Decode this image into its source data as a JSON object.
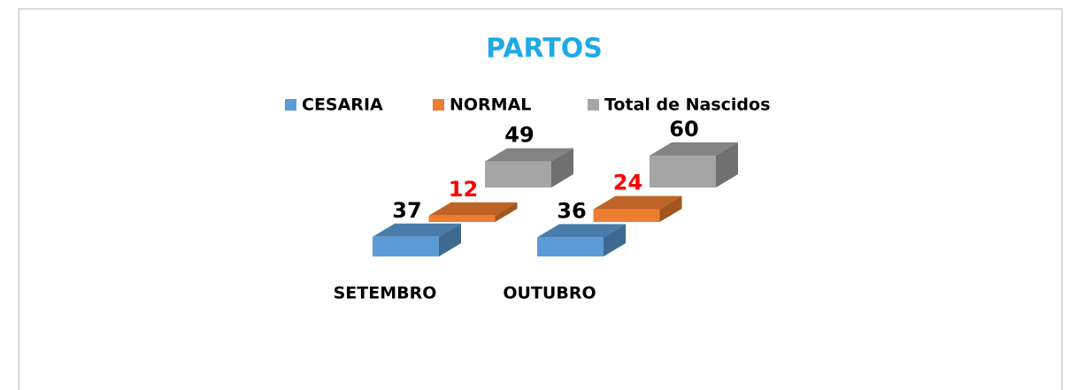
{
  "chart_data": {
    "type": "bar3d",
    "title": "PARTOS",
    "categories": [
      "SETEMBRO",
      "OUTUBRO"
    ],
    "series": [
      {
        "name": "CESARIA",
        "color": "#5b9bd5",
        "label_color": "#000000",
        "values": [
          37,
          36
        ]
      },
      {
        "name": "NORMAL",
        "color": "#ed7d31",
        "label_color": "#ff0000",
        "values": [
          12,
          24
        ]
      },
      {
        "name": "Total de Nascidos",
        "color": "#a5a5a5",
        "label_color": "#000000",
        "values": [
          49,
          60
        ]
      }
    ],
    "title_color": "#1fa9e6",
    "legend": "top"
  }
}
